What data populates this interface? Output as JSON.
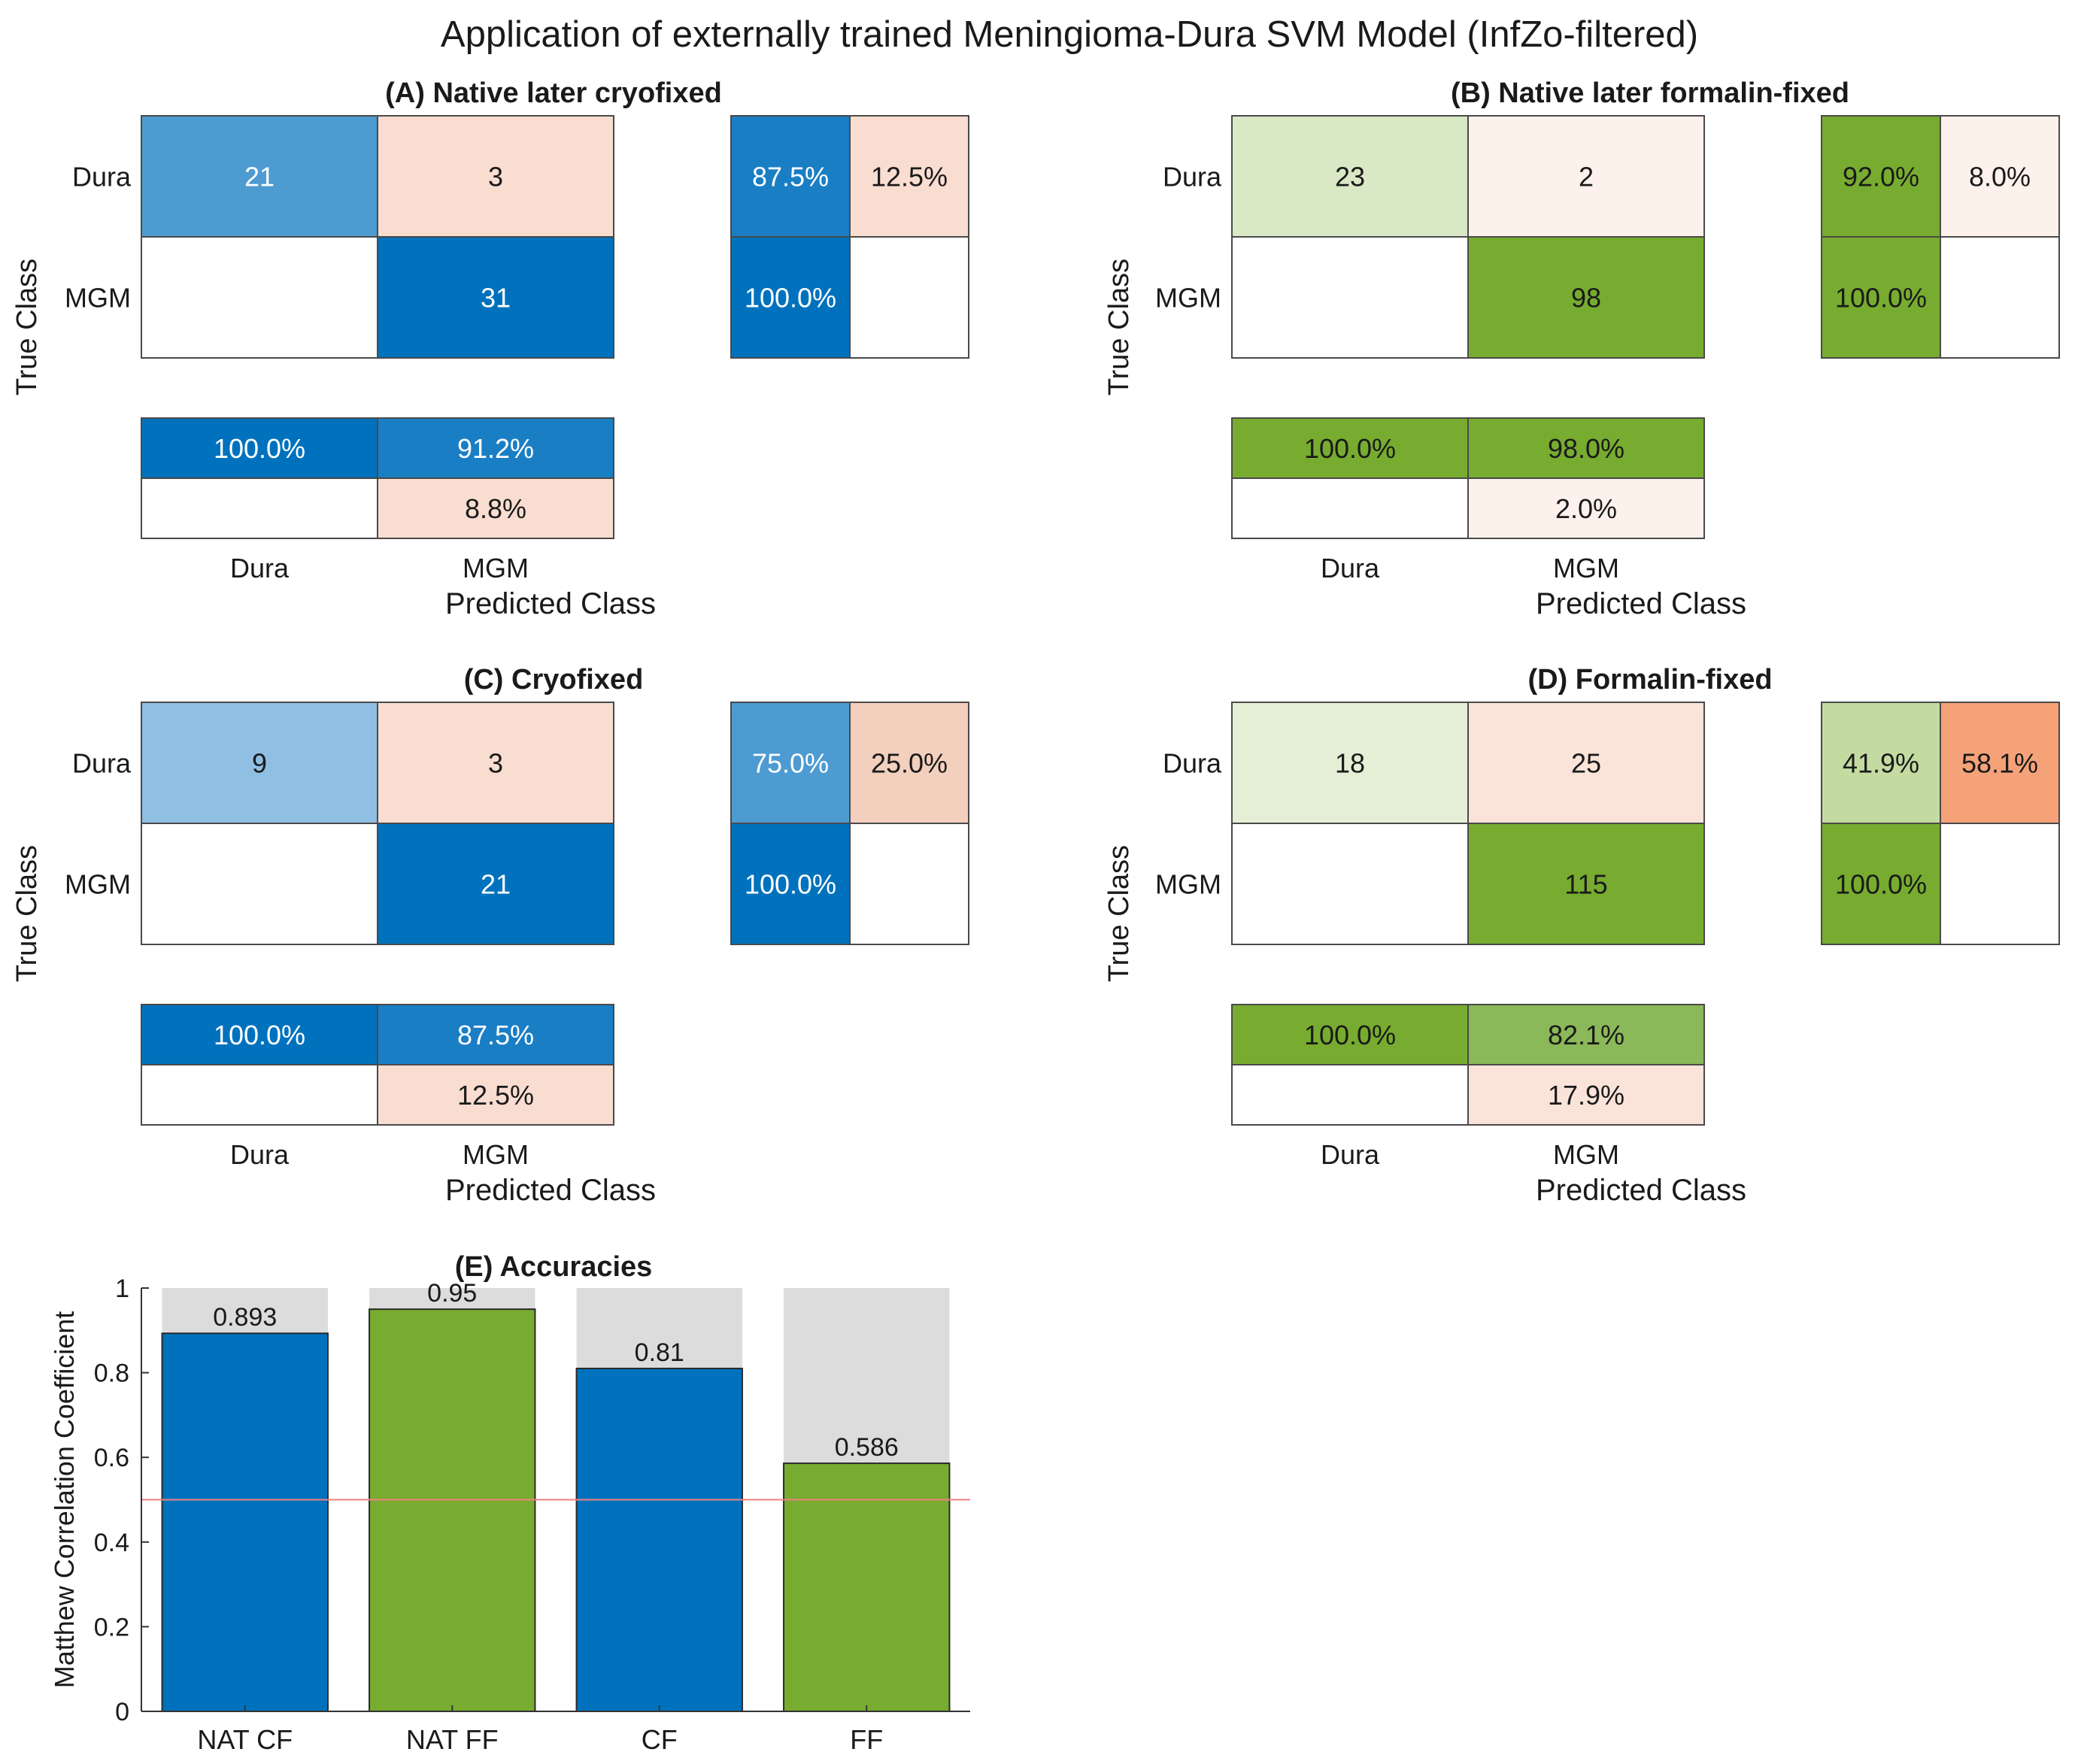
{
  "figure": {
    "title": "Application of externally trained Meningioma-Dura SVM Model (InfZo-filtered)"
  },
  "colors": {
    "blue_dark": "#0072bd",
    "blue_mid": "#1a7ec5",
    "blue_light": "#4d9bd1",
    "blue_pale": "#8fbfe3",
    "green_dark": "#77ac30",
    "green_mid": "#8bb858",
    "green_light": "#c3dba1",
    "green_pale": "#d9e8c5",
    "green_faint": "#e4efd6",
    "salmon_strong": "#f6a279",
    "salmon_mid": "#f3cfbd",
    "salmon_light": "#f8ddd0",
    "salmon_pale": "#fae3d8",
    "salmon_faint": "#fdf1ec",
    "grey_track": "#dcdcdc",
    "threshold": "#f08080"
  },
  "chart_data": [
    {
      "type": "heatmap",
      "title": "(A) Native later cryofixed",
      "ylabel": "True Class",
      "xlabel": "Predicted Class",
      "classes": [
        "Dura",
        "MGM"
      ],
      "matrix": [
        [
          21,
          3
        ],
        [
          "",
          31
        ]
      ],
      "row_summary": [
        [
          "87.5%",
          "12.5%"
        ],
        [
          "100.0%",
          ""
        ]
      ],
      "column_summary": [
        [
          "100.0%",
          "91.2%"
        ],
        [
          "",
          "8.8%"
        ]
      ],
      "cell_colors": {
        "matrix": [
          [
            "blue_light",
            "salmon_light"
          ],
          [
            "white",
            "blue_dark"
          ]
        ],
        "row_summary": [
          [
            "blue_mid",
            "salmon_light"
          ],
          [
            "blue_dark",
            "white"
          ]
        ],
        "column_summary": [
          [
            "blue_dark",
            "blue_mid"
          ],
          [
            "white",
            "salmon_light"
          ]
        ]
      },
      "light_text_on": [
        "blue_dark",
        "blue_mid",
        "blue_light"
      ]
    },
    {
      "type": "heatmap",
      "title": "(B) Native later formalin-fixed",
      "ylabel": "True Class",
      "xlabel": "Predicted Class",
      "classes": [
        "Dura",
        "MGM"
      ],
      "matrix": [
        [
          23,
          2
        ],
        [
          "",
          98
        ]
      ],
      "row_summary": [
        [
          "92.0%",
          "8.0%"
        ],
        [
          "100.0%",
          ""
        ]
      ],
      "column_summary": [
        [
          "100.0%",
          "98.0%"
        ],
        [
          "",
          "2.0%"
        ]
      ],
      "cell_colors": {
        "matrix": [
          [
            "green_pale",
            "salmon_faint"
          ],
          [
            "white",
            "green_dark"
          ]
        ],
        "row_summary": [
          [
            "green_dark",
            "salmon_faint"
          ],
          [
            "green_dark",
            "white"
          ]
        ],
        "column_summary": [
          [
            "green_dark",
            "green_dark"
          ],
          [
            "white",
            "salmon_faint"
          ]
        ]
      },
      "light_text_on": []
    },
    {
      "type": "heatmap",
      "title": "(C) Cryofixed",
      "ylabel": "True Class",
      "xlabel": "Predicted Class",
      "classes": [
        "Dura",
        "MGM"
      ],
      "matrix": [
        [
          9,
          3
        ],
        [
          "",
          21
        ]
      ],
      "row_summary": [
        [
          "75.0%",
          "25.0%"
        ],
        [
          "100.0%",
          ""
        ]
      ],
      "column_summary": [
        [
          "100.0%",
          "87.5%"
        ],
        [
          "",
          "12.5%"
        ]
      ],
      "cell_colors": {
        "matrix": [
          [
            "blue_pale",
            "salmon_light"
          ],
          [
            "white",
            "blue_dark"
          ]
        ],
        "row_summary": [
          [
            "blue_light",
            "salmon_mid"
          ],
          [
            "blue_dark",
            "white"
          ]
        ],
        "column_summary": [
          [
            "blue_dark",
            "blue_mid"
          ],
          [
            "white",
            "salmon_light"
          ]
        ]
      },
      "light_text_on": [
        "blue_dark",
        "blue_mid",
        "blue_light"
      ]
    },
    {
      "type": "heatmap",
      "title": "(D) Formalin-fixed",
      "ylabel": "True Class",
      "xlabel": "Predicted Class",
      "classes": [
        "Dura",
        "MGM"
      ],
      "matrix": [
        [
          18,
          25
        ],
        [
          "",
          115
        ]
      ],
      "row_summary": [
        [
          "41.9%",
          "58.1%"
        ],
        [
          "100.0%",
          ""
        ]
      ],
      "column_summary": [
        [
          "100.0%",
          "82.1%"
        ],
        [
          "",
          "17.9%"
        ]
      ],
      "cell_colors": {
        "matrix": [
          [
            "green_faint",
            "salmon_pale"
          ],
          [
            "white",
            "green_dark"
          ]
        ],
        "row_summary": [
          [
            "green_light",
            "salmon_strong"
          ],
          [
            "green_dark",
            "white"
          ]
        ],
        "column_summary": [
          [
            "green_dark",
            "green_mid"
          ],
          [
            "white",
            "salmon_pale"
          ]
        ]
      },
      "light_text_on": []
    },
    {
      "type": "bar",
      "title": "(E) Accuracies",
      "ylabel": "Matthew Correlation Coefficient",
      "xlabel": "",
      "categories": [
        "NAT CF",
        "NAT FF",
        "CF",
        "FF"
      ],
      "values": [
        0.893,
        0.95,
        0.81,
        0.586
      ],
      "value_labels": [
        "0.893",
        "0.95",
        "0.81",
        "0.586"
      ],
      "bar_colors": [
        "blue_dark",
        "green_dark",
        "blue_dark",
        "green_dark"
      ],
      "ylim": [
        0,
        1
      ],
      "yticks": [
        0,
        0.2,
        0.4,
        0.6,
        0.8,
        1
      ],
      "ytick_labels": [
        "0",
        "0.2",
        "0.4",
        "0.6",
        "0.8",
        "1"
      ],
      "background_track_value": 1,
      "threshold": 0.5,
      "grid": false
    }
  ]
}
